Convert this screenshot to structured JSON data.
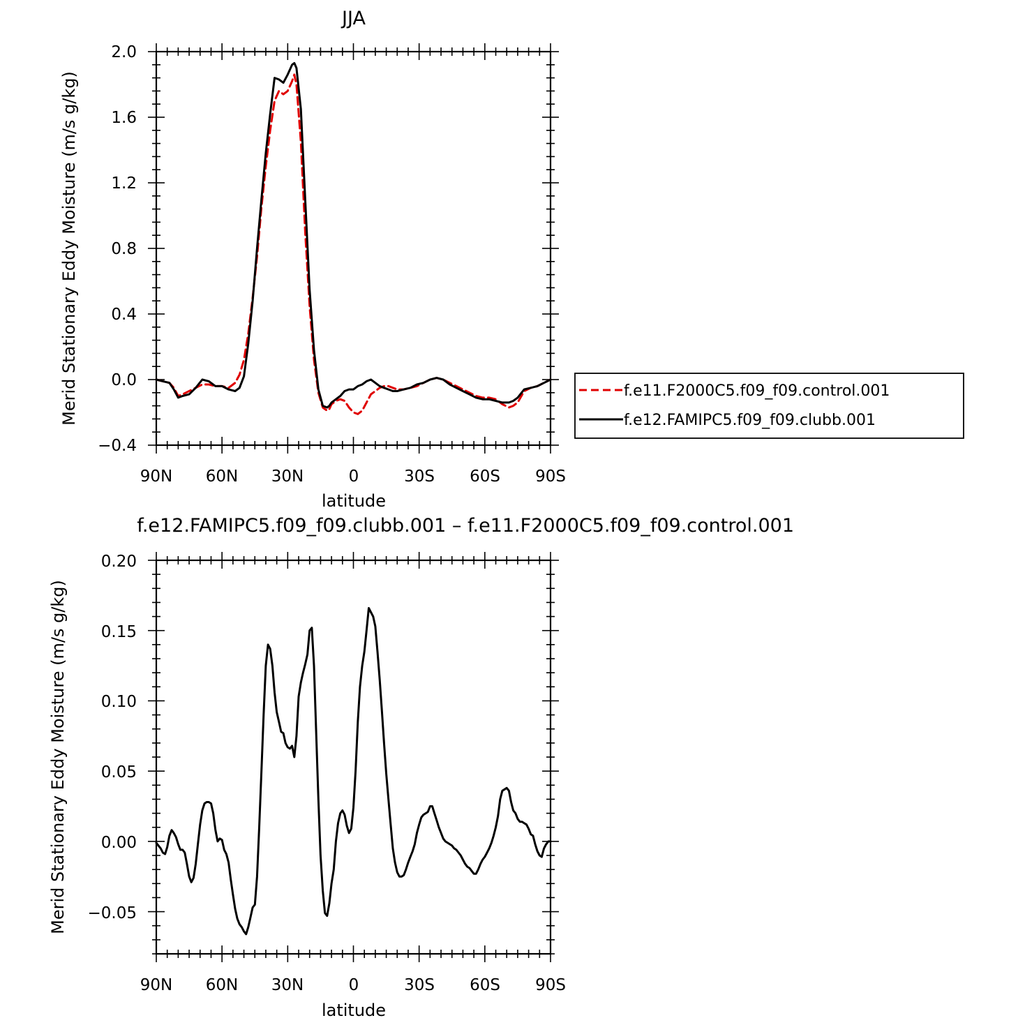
{
  "chart_data": [
    {
      "type": "line",
      "title": "JJA",
      "xlabel": "latitude",
      "ylabel": "Merid Stationary Eddy Moisture (m/s g/kg)",
      "x_domain": [
        90,
        -90
      ],
      "ylim": [
        -0.4,
        2.0
      ],
      "yticks": [
        "2.0",
        "1.6",
        "1.2",
        "0.8",
        "0.4",
        "0.0",
        "−0.4"
      ],
      "ytick_values": [
        2.0,
        1.6,
        1.2,
        0.8,
        0.4,
        0.0,
        -0.4
      ],
      "xticks": [
        "90N",
        "60N",
        "30N",
        "0",
        "30S",
        "60S",
        "90S"
      ],
      "xtick_values": [
        90,
        60,
        30,
        0,
        -30,
        -60,
        -90
      ],
      "legend_position": "right",
      "series": [
        {
          "name": "f.e11.F2000C5.f09_f09.control.001",
          "color": "#e00000",
          "dash": true,
          "x": [
            90,
            87,
            84,
            82,
            80,
            78,
            75,
            72,
            69,
            66,
            63,
            60,
            57,
            54,
            52,
            50,
            48,
            46,
            44,
            42,
            40,
            38,
            36,
            34,
            32,
            30,
            28,
            27,
            26,
            24,
            22,
            20,
            18,
            16,
            14,
            12,
            11,
            10,
            8,
            6,
            4,
            2,
            0,
            -2,
            -4,
            -6,
            -8,
            -10,
            -12,
            -14,
            -16,
            -18,
            -20,
            -23,
            -26,
            -29,
            -32,
            -35,
            -38,
            -41,
            -44,
            -47,
            -50,
            -53,
            -56,
            -59,
            -62,
            -65,
            -68,
            -71,
            -73,
            -75,
            -78,
            -81,
            -84,
            -87,
            -90
          ],
          "y": [
            0.0,
            -0.01,
            -0.02,
            -0.05,
            -0.1,
            -0.09,
            -0.07,
            -0.05,
            -0.03,
            -0.03,
            -0.04,
            -0.04,
            -0.05,
            -0.02,
            0.03,
            0.12,
            0.28,
            0.5,
            0.75,
            1.05,
            1.3,
            1.52,
            1.7,
            1.76,
            1.74,
            1.76,
            1.82,
            1.86,
            1.8,
            1.45,
            0.9,
            0.45,
            0.12,
            -0.08,
            -0.17,
            -0.19,
            -0.18,
            -0.15,
            -0.13,
            -0.12,
            -0.13,
            -0.17,
            -0.2,
            -0.21,
            -0.19,
            -0.14,
            -0.09,
            -0.07,
            -0.05,
            -0.04,
            -0.04,
            -0.05,
            -0.06,
            -0.06,
            -0.05,
            -0.04,
            -0.02,
            0.0,
            0.01,
            0.0,
            -0.02,
            -0.04,
            -0.06,
            -0.08,
            -0.1,
            -0.11,
            -0.11,
            -0.12,
            -0.15,
            -0.17,
            -0.16,
            -0.14,
            -0.07,
            -0.05,
            -0.04,
            -0.02,
            0.0
          ]
        },
        {
          "name": "f.e12.FAMIPC5.f09_f09.clubb.001",
          "color": "#000000",
          "dash": false,
          "x": [
            90,
            87,
            84,
            82,
            80,
            78,
            75,
            72,
            69,
            66,
            63,
            60,
            57,
            54,
            52,
            50,
            48,
            46,
            44,
            42,
            40,
            38,
            36,
            34,
            32,
            30,
            28,
            27,
            26,
            24,
            22,
            20,
            18,
            16,
            14,
            12,
            11,
            10,
            8,
            6,
            4,
            2,
            0,
            -2,
            -4,
            -6,
            -8,
            -10,
            -12,
            -14,
            -16,
            -18,
            -20,
            -23,
            -26,
            -29,
            -32,
            -35,
            -38,
            -41,
            -44,
            -47,
            -50,
            -53,
            -56,
            -59,
            -62,
            -65,
            -68,
            -71,
            -73,
            -75,
            -78,
            -81,
            -84,
            -87,
            -90
          ],
          "y": [
            0.0,
            -0.01,
            -0.02,
            -0.06,
            -0.11,
            -0.1,
            -0.09,
            -0.05,
            0.0,
            -0.01,
            -0.04,
            -0.04,
            -0.06,
            -0.07,
            -0.05,
            0.02,
            0.22,
            0.48,
            0.8,
            1.1,
            1.38,
            1.62,
            1.84,
            1.83,
            1.81,
            1.86,
            1.92,
            1.93,
            1.9,
            1.65,
            1.1,
            0.55,
            0.18,
            -0.06,
            -0.16,
            -0.17,
            -0.16,
            -0.14,
            -0.12,
            -0.1,
            -0.07,
            -0.06,
            -0.06,
            -0.04,
            -0.03,
            -0.01,
            0.0,
            -0.02,
            -0.04,
            -0.05,
            -0.06,
            -0.07,
            -0.07,
            -0.06,
            -0.05,
            -0.03,
            -0.02,
            0.0,
            0.01,
            0.0,
            -0.03,
            -0.05,
            -0.07,
            -0.09,
            -0.11,
            -0.12,
            -0.12,
            -0.13,
            -0.14,
            -0.14,
            -0.13,
            -0.11,
            -0.06,
            -0.05,
            -0.04,
            -0.02,
            0.0
          ]
        }
      ]
    },
    {
      "type": "line",
      "title": "f.e12.FAMIPC5.f09_f09.clubb.001 – f.e11.F2000C5.f09_f09.control.001",
      "xlabel": "latitude",
      "ylabel": "Merid Stationary Eddy Moisture (m/s g/kg)",
      "x_domain": [
        90,
        -90
      ],
      "ylim": [
        -0.08,
        0.2
      ],
      "yticks": [
        "0.20",
        "0.15",
        "0.10",
        "0.05",
        "0.00",
        "−0.05"
      ],
      "ytick_values": [
        0.2,
        0.15,
        0.1,
        0.05,
        0.0,
        -0.05
      ],
      "xticks": [
        "90N",
        "60N",
        "30N",
        "0",
        "30S",
        "60S",
        "90S"
      ],
      "xtick_values": [
        90,
        60,
        30,
        0,
        -30,
        -60,
        -90
      ],
      "series": [
        {
          "color": "#000000",
          "dash": false,
          "x": [
            90,
            89,
            88,
            87,
            86,
            85,
            84,
            83,
            82,
            81,
            80,
            79,
            78,
            77,
            76,
            75,
            74,
            73,
            72,
            71,
            70,
            69,
            68,
            67,
            66,
            65,
            64,
            63,
            62,
            61,
            60,
            59,
            58,
            57,
            56,
            55,
            54,
            53,
            52,
            51,
            50,
            49,
            48,
            47,
            46,
            45,
            44,
            43,
            42,
            41,
            40,
            39,
            38,
            37,
            36,
            35,
            34,
            33,
            32,
            31,
            30,
            29,
            28,
            27,
            26,
            25,
            24,
            23,
            22,
            21,
            20,
            19,
            18,
            17,
            16,
            15,
            14,
            13,
            12,
            11,
            10,
            9,
            8,
            7,
            6,
            5,
            4,
            3,
            2,
            1,
            0,
            -1,
            -2,
            -3,
            -4,
            -5,
            -6,
            -7,
            -8,
            -9,
            -10,
            -11,
            -12,
            -13,
            -14,
            -15,
            -16,
            -17,
            -18,
            -19,
            -20,
            -21,
            -22,
            -23,
            -24,
            -25,
            -26,
            -27,
            -28,
            -29,
            -30,
            -31,
            -32,
            -33,
            -34,
            -35,
            -36,
            -37,
            -38,
            -39,
            -40,
            -41,
            -42,
            -43,
            -44,
            -45,
            -46,
            -47,
            -48,
            -49,
            -50,
            -51,
            -52,
            -53,
            -54,
            -55,
            -56,
            -57,
            -58,
            -59,
            -60,
            -61,
            -62,
            -63,
            -64,
            -65,
            -66,
            -67,
            -68,
            -69,
            -70,
            -71,
            -72,
            -73,
            -74,
            -75,
            -76,
            -77,
            -78,
            -79,
            -80,
            -81,
            -82,
            -83,
            -84,
            -85,
            -86,
            -87,
            -88,
            -89,
            -90
          ],
          "y": [
            -0.001,
            -0.003,
            -0.005,
            -0.008,
            -0.009,
            -0.004,
            0.004,
            0.008,
            0.006,
            0.003,
            -0.002,
            -0.006,
            -0.006,
            -0.008,
            -0.016,
            -0.025,
            -0.029,
            -0.026,
            -0.016,
            -0.002,
            0.012,
            0.022,
            0.027,
            0.028,
            0.028,
            0.027,
            0.02,
            0.008,
            0.0,
            0.002,
            0.001,
            -0.006,
            -0.009,
            -0.015,
            -0.027,
            -0.038,
            -0.048,
            -0.055,
            -0.059,
            -0.061,
            -0.064,
            -0.066,
            -0.061,
            -0.054,
            -0.047,
            -0.045,
            -0.025,
            0.01,
            0.05,
            0.09,
            0.125,
            0.14,
            0.137,
            0.125,
            0.106,
            0.092,
            0.085,
            0.078,
            0.077,
            0.07,
            0.067,
            0.066,
            0.068,
            0.06,
            0.075,
            0.103,
            0.113,
            0.12,
            0.126,
            0.133,
            0.15,
            0.152,
            0.125,
            0.078,
            0.03,
            -0.01,
            -0.035,
            -0.051,
            -0.053,
            -0.044,
            -0.03,
            -0.02,
            0.0,
            0.013,
            0.02,
            0.022,
            0.019,
            0.011,
            0.006,
            0.009,
            0.024,
            0.05,
            0.085,
            0.11,
            0.125,
            0.135,
            0.15,
            0.166,
            0.163,
            0.16,
            0.153,
            0.135,
            0.115,
            0.093,
            0.07,
            0.048,
            0.03,
            0.012,
            -0.005,
            -0.015,
            -0.022,
            -0.025,
            -0.025,
            -0.024,
            -0.02,
            -0.015,
            -0.011,
            -0.007,
            -0.002,
            0.006,
            0.012,
            0.017,
            0.019,
            0.02,
            0.021,
            0.025,
            0.025,
            0.02,
            0.015,
            0.01,
            0.006,
            0.002,
            0.0,
            -0.001,
            -0.002,
            -0.003,
            -0.005,
            -0.006,
            -0.008,
            -0.01,
            -0.013,
            -0.016,
            -0.018,
            -0.019,
            -0.021,
            -0.023,
            -0.023,
            -0.02,
            -0.016,
            -0.013,
            -0.011,
            -0.008,
            -0.005,
            -0.001,
            0.004,
            0.01,
            0.018,
            0.03,
            0.036,
            0.037,
            0.038,
            0.036,
            0.028,
            0.022,
            0.02,
            0.016,
            0.014,
            0.014,
            0.013,
            0.012,
            0.009,
            0.005,
            0.004,
            -0.002,
            -0.007,
            -0.01,
            -0.011,
            -0.005,
            -0.002,
            0.0,
            0.0
          ]
        }
      ]
    }
  ]
}
